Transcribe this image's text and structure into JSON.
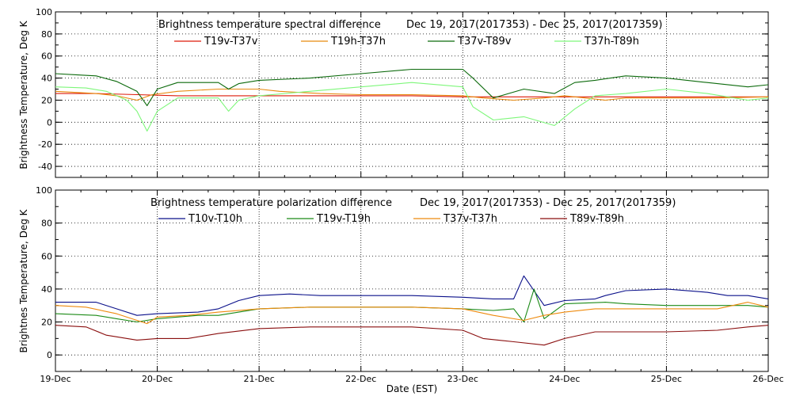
{
  "chart_data": [
    {
      "type": "line",
      "title_left": "Brightness temperature spectral difference",
      "title_right": "Dec 19, 2017(2017353)  -  Dec 25, 2017(2017359)",
      "ylabel": "Brightness Temperature, Deg K",
      "ylim": [
        -50,
        100
      ],
      "yticks": [
        -40,
        -20,
        0,
        20,
        40,
        60,
        80,
        100
      ],
      "xlim": [
        0,
        7
      ],
      "grid": true,
      "series": [
        {
          "name": "T19v-T37v",
          "color": "#dd1a0a",
          "values": [
            [
              0,
              26
            ],
            [
              0.4,
              26
            ],
            [
              0.8,
              25
            ],
            [
              1.2,
              24
            ],
            [
              1.6,
              24
            ],
            [
              2.0,
              24
            ],
            [
              2.5,
              24
            ],
            [
              3.0,
              24
            ],
            [
              3.5,
              24
            ],
            [
              4.0,
              23
            ],
            [
              4.2,
              23
            ],
            [
              4.5,
              23
            ],
            [
              4.8,
              23
            ],
            [
              5.0,
              23
            ],
            [
              5.5,
              23
            ],
            [
              6.0,
              23
            ],
            [
              6.5,
              23
            ],
            [
              7.0,
              23
            ]
          ]
        },
        {
          "name": "T19h-T37h",
          "color": "#e88a0e",
          "values": [
            [
              0,
              28
            ],
            [
              0.2,
              27
            ],
            [
              0.4,
              26
            ],
            [
              0.6,
              24
            ],
            [
              0.8,
              20
            ],
            [
              0.95,
              25
            ],
            [
              1.2,
              28
            ],
            [
              1.6,
              30
            ],
            [
              2.0,
              30
            ],
            [
              2.2,
              28
            ],
            [
              2.6,
              26
            ],
            [
              3.0,
              25
            ],
            [
              3.5,
              25
            ],
            [
              4.0,
              24
            ],
            [
              4.2,
              22
            ],
            [
              4.5,
              20
            ],
            [
              4.8,
              22
            ],
            [
              5.0,
              24
            ],
            [
              5.2,
              22
            ],
            [
              5.4,
              20
            ],
            [
              5.6,
              22
            ],
            [
              6.0,
              22
            ],
            [
              6.5,
              22
            ],
            [
              7.0,
              23
            ]
          ]
        },
        {
          "name": "T37v-T89v",
          "color": "#0c6a0c",
          "values": [
            [
              0,
              44
            ],
            [
              0.2,
              43
            ],
            [
              0.4,
              42
            ],
            [
              0.6,
              37
            ],
            [
              0.8,
              28
            ],
            [
              0.9,
              15
            ],
            [
              1.0,
              30
            ],
            [
              1.2,
              36
            ],
            [
              1.6,
              36
            ],
            [
              1.7,
              30
            ],
            [
              1.8,
              35
            ],
            [
              2.0,
              38
            ],
            [
              2.5,
              40
            ],
            [
              3.0,
              44
            ],
            [
              3.5,
              48
            ],
            [
              4.0,
              48
            ],
            [
              4.1,
              40
            ],
            [
              4.3,
              22
            ],
            [
              4.6,
              30
            ],
            [
              4.9,
              26
            ],
            [
              5.1,
              36
            ],
            [
              5.3,
              38
            ],
            [
              5.6,
              42
            ],
            [
              6.0,
              40
            ],
            [
              6.4,
              36
            ],
            [
              6.8,
              32
            ],
            [
              7.0,
              34
            ]
          ]
        },
        {
          "name": "T37h-T89h",
          "color": "#7ef77a",
          "values": [
            [
              0,
              32
            ],
            [
              0.3,
              31
            ],
            [
              0.5,
              28
            ],
            [
              0.7,
              20
            ],
            [
              0.8,
              10
            ],
            [
              0.9,
              -8
            ],
            [
              1.0,
              10
            ],
            [
              1.2,
              22
            ],
            [
              1.6,
              22
            ],
            [
              1.7,
              10
            ],
            [
              1.8,
              20
            ],
            [
              2.0,
              24
            ],
            [
              2.5,
              28
            ],
            [
              3.0,
              32
            ],
            [
              3.5,
              36
            ],
            [
              4.0,
              32
            ],
            [
              4.1,
              14
            ],
            [
              4.3,
              2
            ],
            [
              4.6,
              5
            ],
            [
              4.9,
              -3
            ],
            [
              5.1,
              12
            ],
            [
              5.3,
              24
            ],
            [
              5.6,
              26
            ],
            [
              6.0,
              30
            ],
            [
              6.4,
              26
            ],
            [
              6.8,
              20
            ],
            [
              7.0,
              22
            ]
          ]
        }
      ]
    },
    {
      "type": "line",
      "title_left": "Brightness temperature polarization difference",
      "title_right": "Dec 19, 2017(2017353)  -  Dec 25, 2017(2017359)",
      "ylabel": "Brightnes Temperature, Deg K",
      "xlabel": "Date (EST)",
      "ylim": [
        -10,
        100
      ],
      "yticks": [
        0,
        20,
        40,
        60,
        80,
        100
      ],
      "xlim": [
        0,
        7
      ],
      "xtick_labels": [
        "19-Dec",
        "20-Dec",
        "21-Dec",
        "22-Dec",
        "23-Dec",
        "24-Dec",
        "25-Dec",
        "26-Dec"
      ],
      "grid": true,
      "series": [
        {
          "name": "T10v-T10h",
          "color": "#0a108a",
          "values": [
            [
              0,
              32
            ],
            [
              0.4,
              32
            ],
            [
              0.6,
              28
            ],
            [
              0.8,
              24
            ],
            [
              1.0,
              25
            ],
            [
              1.4,
              26
            ],
            [
              1.6,
              28
            ],
            [
              1.8,
              33
            ],
            [
              2.0,
              36
            ],
            [
              2.3,
              37
            ],
            [
              2.6,
              36
            ],
            [
              3.0,
              36
            ],
            [
              3.5,
              36
            ],
            [
              4.0,
              35
            ],
            [
              4.3,
              34
            ],
            [
              4.5,
              34
            ],
            [
              4.6,
              48
            ],
            [
              4.8,
              30
            ],
            [
              5.0,
              33
            ],
            [
              5.3,
              34
            ],
            [
              5.4,
              36
            ],
            [
              5.6,
              39
            ],
            [
              6.0,
              40
            ],
            [
              6.4,
              38
            ],
            [
              6.6,
              36
            ],
            [
              6.8,
              36
            ],
            [
              7.0,
              34
            ]
          ]
        },
        {
          "name": "T19v-T19h",
          "color": "#1b8a16",
          "values": [
            [
              0,
              25
            ],
            [
              0.4,
              24
            ],
            [
              0.6,
              22
            ],
            [
              0.8,
              20
            ],
            [
              1.0,
              22
            ],
            [
              1.4,
              24
            ],
            [
              1.6,
              24
            ],
            [
              2.0,
              28
            ],
            [
              2.5,
              29
            ],
            [
              3.0,
              29
            ],
            [
              3.5,
              29
            ],
            [
              4.0,
              28
            ],
            [
              4.3,
              27
            ],
            [
              4.5,
              28
            ],
            [
              4.6,
              20
            ],
            [
              4.7,
              40
            ],
            [
              4.8,
              22
            ],
            [
              5.0,
              31
            ],
            [
              5.4,
              32
            ],
            [
              5.6,
              31
            ],
            [
              6.0,
              30
            ],
            [
              6.5,
              30
            ],
            [
              6.8,
              30
            ],
            [
              7.0,
              29
            ]
          ]
        },
        {
          "name": "T37v-T37h",
          "color": "#ee8a0e",
          "values": [
            [
              0,
              30
            ],
            [
              0.3,
              29
            ],
            [
              0.6,
              25
            ],
            [
              0.9,
              19
            ],
            [
              1.0,
              23
            ],
            [
              1.3,
              24
            ],
            [
              1.6,
              26
            ],
            [
              2.0,
              28
            ],
            [
              2.5,
              29
            ],
            [
              3.0,
              29
            ],
            [
              3.5,
              29
            ],
            [
              4.0,
              28
            ],
            [
              4.3,
              24
            ],
            [
              4.6,
              21
            ],
            [
              4.8,
              24
            ],
            [
              5.0,
              26
            ],
            [
              5.3,
              28
            ],
            [
              5.6,
              28
            ],
            [
              6.0,
              28
            ],
            [
              6.5,
              28
            ],
            [
              6.8,
              32
            ],
            [
              7.0,
              29
            ]
          ]
        },
        {
          "name": "T89v-T89h",
          "color": "#8a0e0e",
          "values": [
            [
              0,
              18
            ],
            [
              0.3,
              17
            ],
            [
              0.5,
              12
            ],
            [
              0.8,
              9
            ],
            [
              1.0,
              10
            ],
            [
              1.3,
              10
            ],
            [
              1.6,
              13
            ],
            [
              2.0,
              16
            ],
            [
              2.5,
              17
            ],
            [
              3.0,
              17
            ],
            [
              3.5,
              17
            ],
            [
              4.0,
              15
            ],
            [
              4.2,
              10
            ],
            [
              4.5,
              8
            ],
            [
              4.8,
              6
            ],
            [
              5.0,
              10
            ],
            [
              5.3,
              14
            ],
            [
              5.6,
              14
            ],
            [
              6.0,
              14
            ],
            [
              6.5,
              15
            ],
            [
              6.8,
              17
            ],
            [
              7.0,
              18
            ]
          ]
        }
      ]
    }
  ]
}
